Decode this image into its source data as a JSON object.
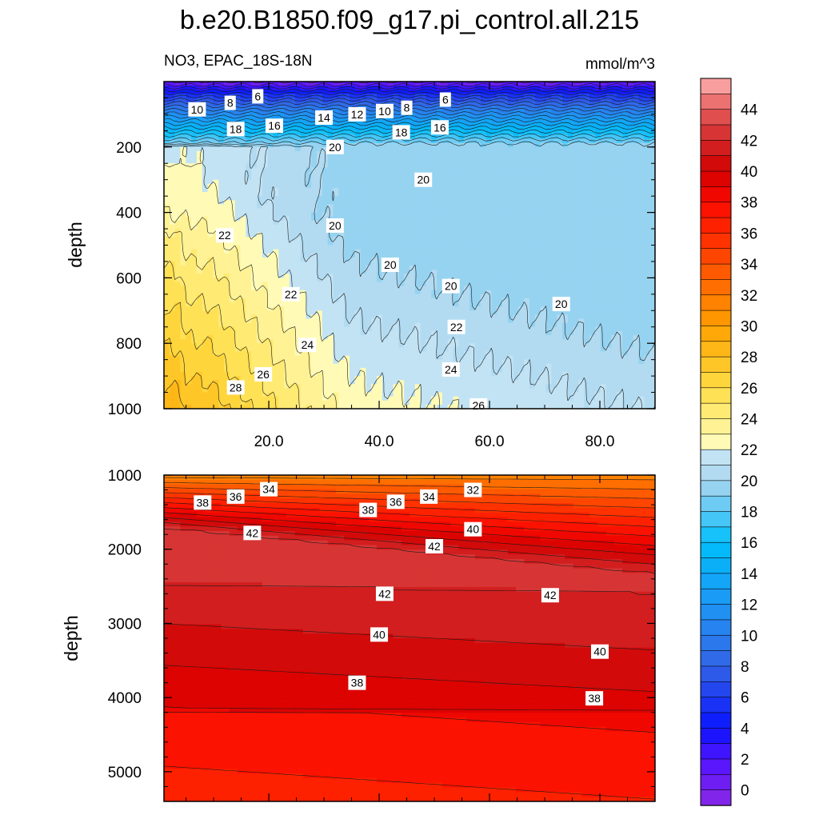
{
  "chart_data": {
    "type": "contour",
    "title": "b.e20.B1850.f09_g17.pi_control.all.215",
    "subtitle_left": "NO3, EPAC_18S-18N",
    "subtitle_right": "mmol/m^3",
    "colorbar": {
      "min": -1,
      "max": 46,
      "step": 1,
      "labels": [
        "0",
        "2",
        "4",
        "6",
        "8",
        "10",
        "12",
        "14",
        "16",
        "18",
        "20",
        "22",
        "24",
        "26",
        "28",
        "30",
        "32",
        "34",
        "36",
        "38",
        "40",
        "42",
        "44"
      ],
      "label_values": [
        0,
        2,
        4,
        6,
        8,
        10,
        12,
        14,
        16,
        18,
        20,
        22,
        24,
        26,
        28,
        30,
        32,
        34,
        36,
        38,
        40,
        42,
        44
      ]
    },
    "panels": [
      {
        "name": "upper",
        "ylabel": "depth",
        "xlim": [
          1,
          90
        ],
        "ylim": [
          0,
          1000
        ],
        "y_reversed": true,
        "x_ticks": [
          20,
          40,
          60,
          80
        ],
        "x_tick_labels": [
          "20.0",
          "40.0",
          "60.0",
          "80.0"
        ],
        "y_ticks": [
          200,
          400,
          600,
          800,
          1000
        ],
        "y_tick_labels": [
          "200",
          "400",
          "600",
          "800",
          "1000"
        ],
        "contour_labels": [
          {
            "text": "10",
            "x": 7,
            "y": 85
          },
          {
            "text": "8",
            "x": 13,
            "y": 65
          },
          {
            "text": "6",
            "x": 18,
            "y": 45
          },
          {
            "text": "18",
            "x": 14,
            "y": 145
          },
          {
            "text": "16",
            "x": 21,
            "y": 135
          },
          {
            "text": "14",
            "x": 30,
            "y": 110
          },
          {
            "text": "12",
            "x": 36,
            "y": 100
          },
          {
            "text": "10",
            "x": 41,
            "y": 90
          },
          {
            "text": "8",
            "x": 45,
            "y": 80
          },
          {
            "text": "6",
            "x": 52,
            "y": 55
          },
          {
            "text": "18",
            "x": 44,
            "y": 155
          },
          {
            "text": "16",
            "x": 51,
            "y": 140
          },
          {
            "text": "20",
            "x": 32,
            "y": 200
          },
          {
            "text": "20",
            "x": 48,
            "y": 300
          },
          {
            "text": "20",
            "x": 32,
            "y": 440
          },
          {
            "text": "22",
            "x": 12,
            "y": 470
          },
          {
            "text": "20",
            "x": 42,
            "y": 560
          },
          {
            "text": "20",
            "x": 53,
            "y": 625
          },
          {
            "text": "20",
            "x": 73,
            "y": 680
          },
          {
            "text": "22",
            "x": 24,
            "y": 650
          },
          {
            "text": "22",
            "x": 54,
            "y": 750
          },
          {
            "text": "24",
            "x": 27,
            "y": 805
          },
          {
            "text": "24",
            "x": 53,
            "y": 880
          },
          {
            "text": "26",
            "x": 19,
            "y": 895
          },
          {
            "text": "26",
            "x": 58,
            "y": 990
          },
          {
            "text": "28",
            "x": 14,
            "y": 935
          }
        ]
      },
      {
        "name": "lower",
        "ylabel": "depth",
        "xlim": [
          1,
          90
        ],
        "ylim": [
          1000,
          5400
        ],
        "y_reversed": true,
        "x_ticks": [
          20,
          40,
          60,
          80
        ],
        "x_tick_labels": [],
        "y_ticks": [
          1000,
          2000,
          3000,
          4000,
          5000
        ],
        "y_tick_labels": [
          "1000",
          "2000",
          "3000",
          "4000",
          "5000"
        ],
        "contour_labels": [
          {
            "text": "38",
            "x": 8,
            "y": 1370
          },
          {
            "text": "36",
            "x": 14,
            "y": 1290
          },
          {
            "text": "34",
            "x": 20,
            "y": 1190
          },
          {
            "text": "38",
            "x": 38,
            "y": 1470
          },
          {
            "text": "36",
            "x": 43,
            "y": 1360
          },
          {
            "text": "34",
            "x": 49,
            "y": 1290
          },
          {
            "text": "32",
            "x": 57,
            "y": 1200
          },
          {
            "text": "42",
            "x": 17,
            "y": 1780
          },
          {
            "text": "40",
            "x": 57,
            "y": 1730
          },
          {
            "text": "42",
            "x": 50,
            "y": 1960
          },
          {
            "text": "42",
            "x": 41,
            "y": 2600
          },
          {
            "text": "42",
            "x": 71,
            "y": 2620
          },
          {
            "text": "40",
            "x": 40,
            "y": 3150
          },
          {
            "text": "40",
            "x": 80,
            "y": 3380
          },
          {
            "text": "38",
            "x": 36,
            "y": 3800
          },
          {
            "text": "38",
            "x": 79,
            "y": 4010
          }
        ]
      }
    ]
  }
}
